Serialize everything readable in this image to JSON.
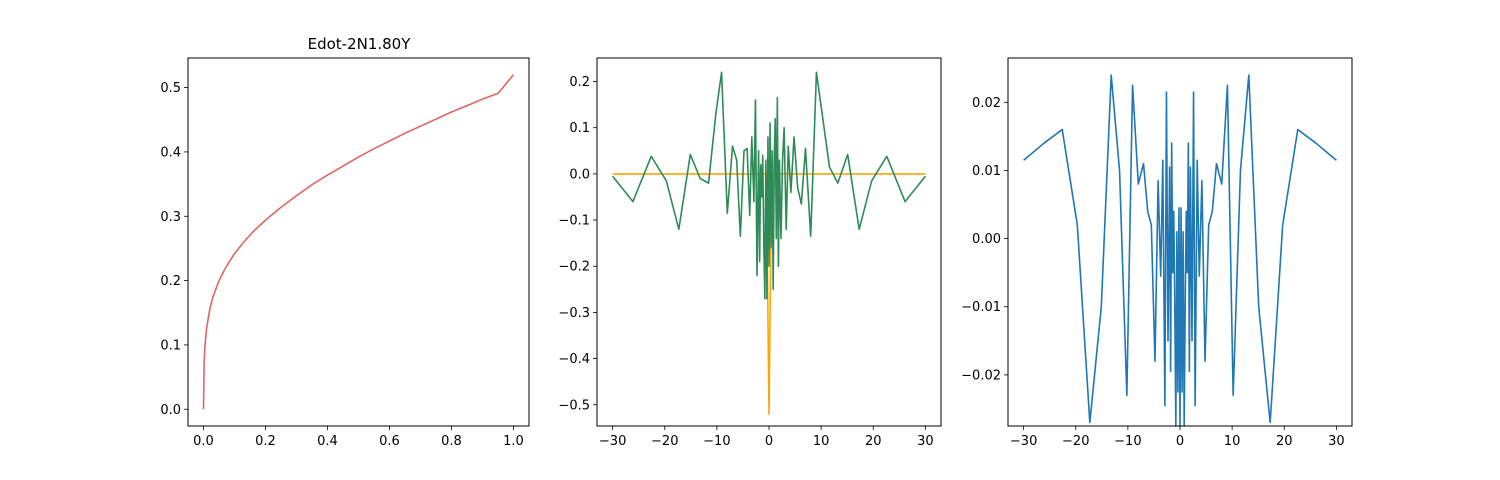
{
  "chart_data": [
    {
      "type": "line",
      "title": "Edot-2N1.80Y",
      "xlim": [
        -0.05,
        1.05
      ],
      "ylim": [
        -0.026,
        0.546
      ],
      "xticks": [
        0.0,
        0.2,
        0.4,
        0.6,
        0.8,
        1.0
      ],
      "xtick_labels": [
        "0.0",
        "0.2",
        "0.4",
        "0.6",
        "0.8",
        "1.0"
      ],
      "yticks": [
        0.0,
        0.1,
        0.2,
        0.3,
        0.4,
        0.5
      ],
      "ytick_labels": [
        "0.0",
        "0.1",
        "0.2",
        "0.3",
        "0.4",
        "0.5"
      ],
      "grid": false,
      "series": [
        {
          "color": "#e06666",
          "x": [
            0,
            0.002,
            0.005,
            0.01,
            0.02,
            0.03,
            0.05,
            0.07,
            0.1,
            0.13,
            0.16,
            0.2,
            0.25,
            0.3,
            0.35,
            0.4,
            0.45,
            0.5,
            0.55,
            0.6,
            0.65,
            0.7,
            0.75,
            0.8,
            0.85,
            0.9,
            0.95,
            1.0
          ],
          "y": [
            0.0,
            0.073,
            0.1,
            0.126,
            0.155,
            0.174,
            0.2,
            0.219,
            0.242,
            0.26,
            0.276,
            0.294,
            0.314,
            0.332,
            0.349,
            0.364,
            0.378,
            0.392,
            0.405,
            0.417,
            0.429,
            0.44,
            0.451,
            0.462,
            0.472,
            0.482,
            0.491,
            0.52
          ]
        }
      ]
    },
    {
      "type": "line",
      "title": "",
      "xlim": [
        -33,
        33
      ],
      "ylim": [
        -0.546,
        0.251
      ],
      "xticks": [
        -30,
        -20,
        -10,
        0,
        10,
        20,
        30
      ],
      "xtick_labels": [
        "−30",
        "−20",
        "−10",
        "0",
        "10",
        "20",
        "30"
      ],
      "yticks": [
        -0.5,
        -0.4,
        -0.3,
        -0.2,
        -0.1,
        0.0,
        0.1,
        0.2
      ],
      "ytick_labels": [
        "−0.5",
        "−0.4",
        "−0.3",
        "−0.2",
        "−0.1",
        "0.0",
        "0.1",
        "0.2"
      ],
      "grid": false,
      "series": [
        {
          "color": "#ffa500",
          "x": [
            -30,
            -0.5,
            0,
            0.5,
            30
          ],
          "y": [
            0.0,
            0.0,
            -0.52,
            0.0,
            0.0
          ]
        },
        {
          "color": "#2e8b57",
          "x": [
            -30,
            -26.1,
            -22.6,
            -19.7,
            -17.3,
            -15.1,
            -13.2,
            -11.6,
            -10.2,
            -9.1,
            -8.0,
            -7.0,
            -6.2,
            -5.5,
            -4.8,
            -4.2,
            -3.7,
            -3.3,
            -2.9,
            -2.6,
            -2.3,
            -2.0,
            -1.8,
            -1.6,
            -1.4,
            -1.2,
            -1.0,
            -0.8,
            -0.6,
            -0.4,
            -0.2,
            0,
            0.2,
            0.4,
            0.6,
            0.8,
            1.0,
            1.2,
            1.4,
            1.6,
            1.8,
            2.0,
            2.3,
            2.6,
            2.9,
            3.3,
            3.7,
            4.2,
            4.8,
            5.5,
            6.2,
            7.0,
            8.0,
            9.1,
            10.2,
            11.6,
            13.2,
            15.1,
            17.3,
            19.7,
            22.6,
            26.1,
            30
          ],
          "y": [
            -0.005,
            -0.06,
            0.038,
            -0.015,
            -0.12,
            0.042,
            -0.01,
            -0.02,
            0.13,
            0.22,
            -0.085,
            0.06,
            0.03,
            -0.135,
            0.05,
            0.055,
            -0.09,
            0.08,
            -0.06,
            0.16,
            -0.22,
            0.05,
            -0.19,
            0.02,
            -0.05,
            0.04,
            -0.15,
            -0.27,
            0.03,
            -0.27,
            0.08,
            -0.2,
            0.11,
            -0.16,
            0.05,
            -0.25,
            0.03,
            0.12,
            -0.14,
            0.165,
            -0.2,
            0.03,
            -0.14,
            0.03,
            0.1,
            -0.12,
            0.06,
            -0.04,
            0.08,
            -0.03,
            -0.065,
            0.055,
            -0.135,
            0.22,
            0.13,
            0.015,
            -0.02,
            0.042,
            -0.12,
            -0.015,
            0.038,
            -0.06,
            -0.005
          ]
        }
      ]
    },
    {
      "type": "line",
      "title": "",
      "xlim": [
        -33,
        33
      ],
      "ylim": [
        -0.0275,
        0.0265
      ],
      "xticks": [
        -30,
        -20,
        -10,
        0,
        10,
        20,
        30
      ],
      "xtick_labels": [
        "−30",
        "−20",
        "−10",
        "0",
        "10",
        "20",
        "30"
      ],
      "yticks": [
        -0.02,
        -0.01,
        0.0,
        0.01,
        0.02
      ],
      "ytick_labels": [
        "−0.02",
        "−0.01",
        "0.00",
        "0.01",
        "0.02"
      ],
      "grid": false,
      "series": [
        {
          "color": "#1f77b4",
          "x": [
            -30,
            -26.1,
            -22.6,
            -19.7,
            -17.3,
            -15.1,
            -13.2,
            -11.6,
            -10.2,
            -9.1,
            -8.0,
            -7.0,
            -6.2,
            -5.5,
            -4.8,
            -4.2,
            -3.7,
            -3.3,
            -2.9,
            -2.6,
            -2.3,
            -2.0,
            -1.8,
            -1.6,
            -1.4,
            -1.2,
            -1.0,
            -0.8,
            -0.6,
            -0.4,
            -0.2,
            0,
            0.2,
            0.4,
            0.6,
            0.8,
            1.0,
            1.2,
            1.4,
            1.6,
            1.8,
            2.0,
            2.3,
            2.6,
            2.9,
            3.3,
            3.7,
            4.2,
            4.8,
            5.5,
            6.2,
            7.0,
            8.0,
            9.1,
            10.2,
            11.6,
            13.2,
            15.1,
            17.3,
            19.7,
            22.6,
            26.1,
            30
          ],
          "y": [
            0.0115,
            0.014,
            0.016,
            0.002,
            -0.027,
            -0.01,
            0.024,
            0.01,
            -0.023,
            0.0225,
            0.008,
            0.011,
            0.004,
            0.002,
            -0.018,
            0.0085,
            -0.0055,
            0.0115,
            -0.0245,
            0.0215,
            -0.015,
            0.0105,
            -0.0195,
            0.014,
            -0.005,
            0.004,
            -0.0095,
            -0.0275,
            0.001,
            -0.0225,
            0.0045,
            -0.0275,
            0.0045,
            -0.0225,
            0.001,
            -0.0275,
            -0.0095,
            0.004,
            -0.005,
            0.014,
            -0.0195,
            0.0105,
            -0.015,
            0.0215,
            -0.0245,
            0.0115,
            -0.0055,
            0.0085,
            -0.018,
            0.002,
            0.004,
            0.011,
            0.008,
            0.0225,
            -0.023,
            0.01,
            0.024,
            -0.01,
            -0.027,
            0.002,
            0.016,
            0.014,
            0.0115
          ]
        }
      ]
    }
  ]
}
